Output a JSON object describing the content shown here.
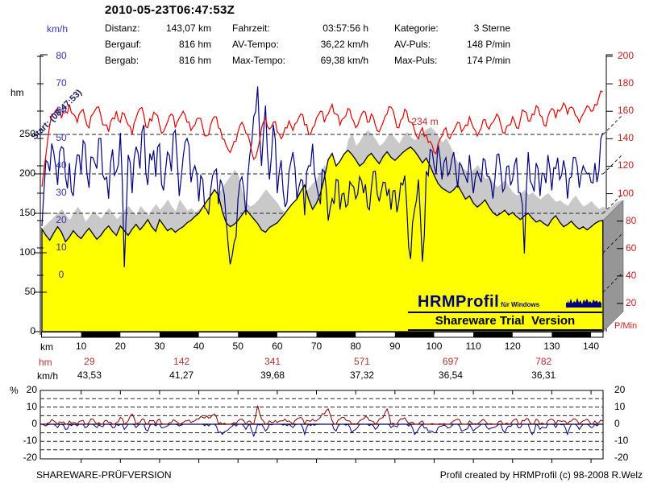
{
  "title": "2010-05-23T06:47:53Z",
  "header": {
    "col1": [
      {
        "label": "Distanz:",
        "value": "143,07 km"
      },
      {
        "label": "Bergauf:",
        "value": "816 hm"
      },
      {
        "label": "Bergab:",
        "value": "816 hm"
      }
    ],
    "col2": [
      {
        "label": "Fahrzeit:",
        "value": "03:57:56 h"
      },
      {
        "label": "AV-Tempo:",
        "value": "36,22 km/h"
      },
      {
        "label": "Max-Tempo:",
        "value": "69,38 km/h"
      }
    ],
    "col3": [
      {
        "label": "Kategorie:",
        "value": "3 Sterne"
      },
      {
        "label": "AV-Puls:",
        "value": "148 P/min"
      },
      {
        "label": "Max-Puls:",
        "value": "174 P/min"
      }
    ]
  },
  "units": {
    "speed": "km/h",
    "elevation": "hm",
    "pulse": "P/Min",
    "distance": "km",
    "gradient": "%"
  },
  "annotations": {
    "start": "Start: (08:47:53)",
    "peak_elevation": "234 m"
  },
  "segment_rows": {
    "elevation_label": "hm",
    "speed_label": "km/h",
    "centers_km": [
      12.1,
      35.6,
      58.8,
      81.6,
      104.2,
      127.9
    ],
    "elevation_values": [
      "29",
      "142",
      "341",
      "571",
      "697",
      "782"
    ],
    "speed_values": [
      "43,53",
      "41,27",
      "39,68",
      "37,32",
      "36,54",
      "36,31"
    ]
  },
  "logo": {
    "brand": "HRMProfil",
    "brand_sub": "für Windows",
    "trial": "Shareware Trial  Version"
  },
  "footer": {
    "left": "SHAREWARE-PRÜFVERSION",
    "right": "Profil created by HRMProfil (c) 98-2008 R.Welz"
  },
  "colors": {
    "elevation_fill": "#ffff00",
    "shadow": "#c9c9c9",
    "side_panel": "#969696",
    "speed_line": "#000080",
    "pulse_line": "#dd0000",
    "axis_blue": "#3434b0",
    "axis_red": "#c41e1e",
    "gradient_pos": "#8b0000",
    "gradient_neg": "#00008b"
  },
  "chart_data": [
    {
      "type": "line",
      "title": "2010-05-23T06:47:53Z",
      "xlabel": "km",
      "x_start_km": 0,
      "x_step_km": 1,
      "total_km": 143.07,
      "x_ticks_km": [
        10,
        20,
        30,
        40,
        50,
        60,
        70,
        80,
        90,
        100,
        110,
        120,
        130,
        140
      ],
      "axes": {
        "elevation_hm": {
          "min": 0,
          "max": 250,
          "ticks": [
            0,
            50,
            100,
            150,
            200,
            250
          ],
          "gridlines": [
            50,
            100,
            150,
            200,
            250
          ]
        },
        "speed_kmh": {
          "min": 0,
          "max": 80,
          "ticks": [
            0,
            10,
            20,
            30,
            40,
            50,
            60,
            70,
            80
          ]
        },
        "pulse_pmin": {
          "min": 20,
          "max": 200,
          "ticks": [
            20,
            40,
            60,
            80,
            100,
            120,
            140,
            160,
            180,
            200
          ]
        }
      },
      "series": [
        {
          "name": "elevation",
          "unit": "hm",
          "style": "area",
          "values": [
            130,
            122,
            116,
            125,
            133,
            126,
            114,
            120,
            128,
            122,
            118,
            125,
            131,
            124,
            117,
            122,
            129,
            134,
            127,
            122,
            134,
            128,
            122,
            130,
            136,
            129,
            135,
            142,
            133,
            127,
            142,
            135,
            128,
            131,
            126,
            130,
            133,
            138,
            141,
            146,
            150,
            158,
            165,
            172,
            180,
            173,
            152,
            138,
            133,
            136,
            141,
            148,
            155,
            149,
            143,
            137,
            129,
            126,
            132,
            135,
            138,
            144,
            150,
            157,
            163,
            168,
            178,
            186,
            168,
            155,
            163,
            175,
            195,
            218,
            226,
            210,
            216,
            225,
            230,
            225,
            218,
            210,
            214,
            222,
            226,
            219,
            213,
            222,
            228,
            221,
            217,
            222,
            227,
            231,
            234,
            229,
            222,
            214,
            220,
            210,
            198,
            188,
            182,
            179,
            176,
            180,
            186,
            177,
            168,
            172,
            163,
            158,
            162,
            167,
            158,
            151,
            147,
            150,
            154,
            148,
            151,
            146,
            142,
            147,
            150,
            144,
            139,
            141,
            137,
            134,
            142,
            147,
            139,
            133,
            136,
            140,
            134,
            130,
            133,
            129,
            133,
            137,
            140,
            141
          ]
        },
        {
          "name": "speed",
          "unit": "km/h",
          "style": "line",
          "values": [
            18,
            42,
            38,
            45,
            33,
            47,
            36,
            41,
            29,
            44,
            37,
            48,
            32,
            43,
            39,
            50,
            35,
            28,
            46,
            38,
            52,
            3,
            44,
            30,
            47,
            39,
            55,
            33,
            42,
            36,
            48,
            31,
            45,
            38,
            53,
            29,
            43,
            50,
            34,
            40,
            27,
            35,
            24,
            31,
            38,
            26,
            33,
            20,
            4,
            12,
            28,
            36,
            22,
            44,
            58,
            69,
            40,
            62,
            35,
            55,
            30,
            42,
            25,
            38,
            45,
            28,
            35,
            22,
            40,
            48,
            33,
            26,
            38,
            20,
            28,
            35,
            24,
            30,
            26,
            33,
            28,
            36,
            30,
            25,
            32,
            38,
            27,
            34,
            29,
            24,
            31,
            27,
            33,
            26,
            6,
            24,
            35,
            5,
            38,
            46,
            40,
            48,
            35,
            43,
            38,
            45,
            32,
            40,
            36,
            44,
            30,
            38,
            34,
            42,
            36,
            28,
            44,
            38,
            32,
            40,
            35,
            43,
            30,
            8,
            45,
            33,
            41,
            29,
            37,
            44,
            31,
            39,
            35,
            42,
            28,
            36,
            43,
            32,
            40,
            37,
            34,
            41,
            38,
            52
          ]
        },
        {
          "name": "pulse",
          "unit": "P/min",
          "style": "line",
          "values": [
            105,
            128,
            150,
            158,
            162,
            155,
            160,
            165,
            158,
            152,
            160,
            155,
            148,
            158,
            163,
            157,
            150,
            145,
            155,
            160,
            152,
            158,
            150,
            143,
            155,
            162,
            157,
            148,
            153,
            158,
            150,
            145,
            152,
            158,
            148,
            155,
            160,
            152,
            146,
            150,
            155,
            148,
            142,
            150,
            156,
            148,
            140,
            135,
            130,
            138,
            145,
            152,
            144,
            138,
            125,
            132,
            148,
            155,
            147,
            152,
            145,
            140,
            148,
            153,
            146,
            152,
            158,
            150,
            143,
            148,
            155,
            160,
            152,
            158,
            165,
            158,
            150,
            155,
            162,
            155,
            148,
            154,
            160,
            152,
            158,
            150,
            145,
            152,
            158,
            163,
            155,
            148,
            155,
            160,
            152,
            146,
            140,
            148,
            143,
            138,
            130,
            136,
            142,
            148,
            140,
            146,
            152,
            145,
            150,
            156,
            148,
            142,
            148,
            154,
            147,
            152,
            158,
            150,
            144,
            150,
            156,
            148,
            154,
            160,
            153,
            158,
            164,
            157,
            150,
            156,
            162,
            155,
            160,
            166,
            158,
            163,
            157,
            152,
            158,
            164,
            160,
            165,
            170,
            174
          ]
        }
      ]
    },
    {
      "type": "line",
      "ylabel": "%",
      "ylim": [
        -20,
        20
      ],
      "yticks": [
        20,
        10,
        0,
        -10,
        -20
      ],
      "grid_dashed": [
        15,
        10,
        5,
        -5,
        -10,
        -15
      ],
      "series": [
        {
          "name": "gradient",
          "unit": "%",
          "values": [
            0,
            -1,
            1,
            2,
            -2,
            1,
            -3,
            2,
            1,
            -1,
            2,
            -2,
            1,
            3,
            -2,
            -1,
            2,
            1,
            -2,
            1,
            4,
            -3,
            2,
            6,
            -2,
            1,
            3,
            -4,
            2,
            -1,
            3,
            -2,
            -1,
            1,
            2,
            -1,
            1,
            2,
            1,
            2,
            3,
            4,
            5,
            4,
            6,
            -5,
            -6,
            -4,
            -2,
            1,
            2,
            3,
            -3,
            2,
            -7,
            11,
            3,
            -4,
            2,
            1,
            1,
            2,
            3,
            2,
            -2,
            3,
            4,
            -6,
            2,
            3,
            2,
            4,
            6,
            9,
            2,
            -4,
            3,
            4,
            2,
            -5,
            -3,
            2,
            3,
            4,
            2,
            -3,
            3,
            4,
            9,
            -2,
            -1,
            2,
            3,
            2,
            1,
            -6,
            -3,
            2,
            -2,
            -4,
            -5,
            -2,
            -1,
            -1,
            -2,
            2,
            3,
            -4,
            -3,
            2,
            -4,
            -2,
            2,
            2,
            -3,
            -2,
            -1,
            2,
            -5,
            -1,
            2,
            3,
            -2,
            2,
            3,
            -6,
            3,
            -3,
            -2,
            2,
            3,
            -2,
            2,
            2,
            -6,
            2,
            3,
            -3,
            2,
            3,
            -2,
            2,
            1,
            2
          ]
        }
      ]
    }
  ]
}
